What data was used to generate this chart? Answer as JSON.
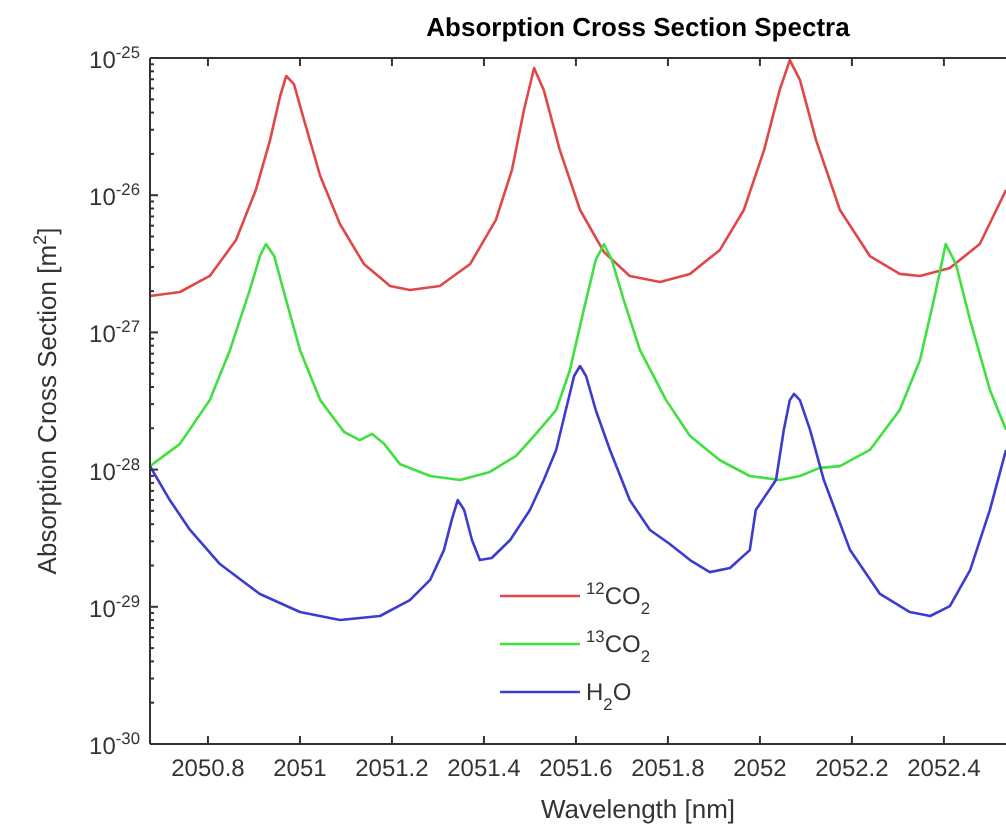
{
  "chart_data": {
    "type": "line",
    "title": "Absorption Cross Section Spectra",
    "xlabel": "Wavelength [nm]",
    "ylabel": "Absorption Cross Section [m$^{2}$]",
    "log": "y",
    "grid": false,
    "legend": "bottom",
    "line_style": "solid",
    "marker": "none",
    "xlim": [
      2050.674,
      2052.535
    ],
    "xticks": [
      2050.8,
      2051,
      2051.2,
      2051.4,
      2051.6,
      2051.8,
      2052,
      2052.2,
      2052.4
    ],
    "ylim": [
      1e-30,
      1e-25
    ],
    "yticks": [
      {
        "value": 1e-30,
        "label": "10$^{-30}$"
      },
      {
        "value": 1e-29,
        "label": "10$^{-29}$"
      },
      {
        "value": 1e-28,
        "label": "10$^{-28}$"
      },
      {
        "value": 1e-27,
        "label": "10$^{-27}$"
      },
      {
        "value": 1e-26,
        "label": "10$^{-26}$"
      },
      {
        "value": 1e-25,
        "label": "10$^{-25}$"
      }
    ],
    "series": [
      {
        "name": "$^{12}$CO$_{2}$",
        "color": "#e04848",
        "x": [
          2050.674,
          2050.739,
          2050.804,
          2050.861,
          2050.904,
          2050.935,
          2050.957,
          2050.97,
          2050.987,
          2051.009,
          2051.044,
          2051.087,
          2051.139,
          2051.196,
          2051.239,
          2051.304,
          2051.37,
          2051.426,
          2051.461,
          2051.487,
          2051.509,
          2051.53,
          2051.565,
          2051.609,
          2051.661,
          2051.717,
          2051.783,
          2051.848,
          2051.913,
          2051.965,
          2052.009,
          2052.043,
          2052.065,
          2052.087,
          2052.122,
          2052.174,
          2052.239,
          2052.304,
          2052.348,
          2052.413,
          2052.478,
          2052.535
        ],
        "values": [
          1.84e-27,
          1.97e-27,
          2.58e-27,
          4.71e-27,
          1.09e-26,
          2.52e-26,
          5.28e-26,
          7.39e-26,
          6.46e-26,
          3.53e-26,
          1.38e-26,
          6.17e-27,
          3.15e-27,
          2.18e-27,
          2.04e-27,
          2.18e-27,
          3.15e-27,
          6.6e-27,
          1.53e-26,
          4.18e-26,
          8.45e-26,
          5.85e-26,
          2.13e-26,
          7.8e-27,
          3.85e-27,
          2.58e-27,
          2.33e-27,
          2.67e-27,
          3.99e-27,
          7.8e-27,
          2.13e-26,
          5.85e-26,
          9.66e-26,
          6.92e-26,
          2.52e-26,
          7.8e-27,
          3.6e-27,
          2.67e-27,
          2.58e-27,
          2.95e-27,
          4.41e-27,
          1.09e-26
        ]
      },
      {
        "name": "$^{13}$CO$_{2}$",
        "color": "#40e040",
        "x": [
          2050.674,
          2050.739,
          2050.804,
          2050.848,
          2050.891,
          2050.913,
          2050.926,
          2050.944,
          2050.97,
          2051.0,
          2051.044,
          2051.096,
          2051.13,
          2051.157,
          2051.183,
          2051.217,
          2051.283,
          2051.348,
          2051.413,
          2051.47,
          2051.513,
          2051.557,
          2051.587,
          2051.617,
          2051.643,
          2051.661,
          2051.678,
          2051.704,
          2051.739,
          2051.796,
          2051.848,
          2051.913,
          2051.978,
          2052.043,
          2052.087,
          2052.13,
          2052.174,
          2052.239,
          2052.304,
          2052.348,
          2052.378,
          2052.404,
          2052.426,
          2052.457,
          2052.5,
          2052.535
        ],
        "values": [
          1.06e-28,
          1.54e-28,
          3.21e-28,
          7.45e-28,
          2.04e-27,
          3.6e-27,
          4.41e-27,
          3.6e-27,
          1.72e-27,
          7.45e-28,
          3.21e-28,
          1.88e-28,
          1.64e-28,
          1.82e-28,
          1.54e-28,
          1.1e-28,
          8.98e-29,
          8.39e-29,
          9.62e-29,
          1.26e-28,
          1.82e-28,
          2.72e-28,
          5.32e-28,
          1.46e-27,
          3.37e-27,
          4.41e-27,
          3.37e-27,
          1.72e-27,
          7.45e-28,
          3.21e-28,
          1.76e-28,
          1.17e-28,
          8.98e-29,
          8.39e-29,
          8.98e-29,
          1.03e-28,
          1.06e-28,
          1.39e-28,
          2.72e-28,
          6.29e-28,
          1.72e-27,
          4.41e-27,
          3.15e-27,
          1.23e-27,
          3.8e-28,
          1.95e-28
        ]
      },
      {
        "name": "H$_{2}$O",
        "color": "#3c3cd0",
        "x": [
          2050.674,
          2050.717,
          2050.761,
          2050.826,
          2050.913,
          2051.0,
          2051.087,
          2051.174,
          2051.239,
          2051.283,
          2051.313,
          2051.33,
          2051.343,
          2051.357,
          2051.374,
          2051.391,
          2051.417,
          2051.457,
          2051.5,
          2051.53,
          2051.557,
          2051.578,
          2051.596,
          2051.609,
          2051.622,
          2051.643,
          2051.674,
          2051.717,
          2051.761,
          2051.804,
          2051.848,
          2051.891,
          2051.935,
          2051.978,
          2051.991,
          2052.035,
          2052.052,
          2052.065,
          2052.074,
          2052.087,
          2052.109,
          2052.139,
          2052.196,
          2052.261,
          2052.326,
          2052.37,
          2052.413,
          2052.457,
          2052.5,
          2052.535
        ],
        "values": [
          1.06e-28,
          6e-29,
          3.63e-29,
          2.05e-29,
          1.24e-29,
          9.16e-30,
          8.02e-30,
          8.57e-30,
          1.12e-29,
          1.57e-29,
          2.59e-29,
          4.3e-29,
          6e-29,
          5.08e-29,
          3.07e-29,
          2.19e-29,
          2.27e-29,
          3.07e-29,
          5.08e-29,
          8.39e-29,
          1.39e-28,
          2.72e-28,
          4.81e-28,
          5.69e-28,
          4.81e-28,
          2.72e-28,
          1.39e-28,
          6e-29,
          3.63e-29,
          2.87e-29,
          2.19e-29,
          1.79e-29,
          1.92e-29,
          2.59e-29,
          5.08e-29,
          8.39e-29,
          1.95e-28,
          3.21e-28,
          3.56e-28,
          3.21e-28,
          1.95e-28,
          8.39e-29,
          2.59e-29,
          1.24e-29,
          9.16e-30,
          8.57e-30,
          1.01e-29,
          1.85e-29,
          5.08e-29,
          1.39e-28
        ]
      }
    ]
  }
}
